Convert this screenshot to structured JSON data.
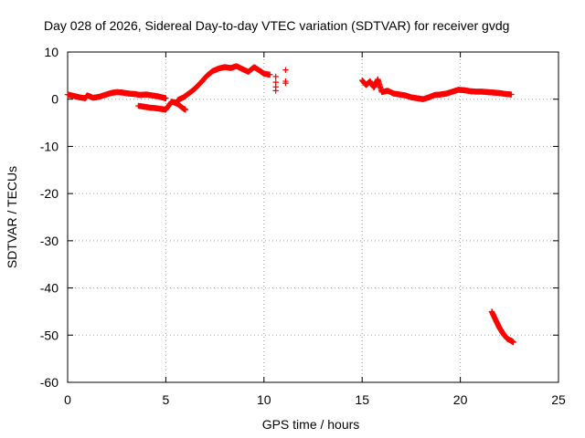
{
  "chart_data": {
    "type": "scatter",
    "title": "Day 028 of 2026, Sidereal Day-to-day VTEC variation (SDTVAR) for receiver gvdg",
    "xlabel": "GPS time / hours",
    "ylabel": "SDTVAR / TECUs",
    "xlim": [
      0,
      25
    ],
    "ylim": [
      -60,
      10
    ],
    "xticks": [
      0,
      5,
      10,
      15,
      20,
      25
    ],
    "yticks": [
      10,
      0,
      -10,
      -20,
      -30,
      -40,
      -50,
      -60
    ],
    "grid": true,
    "marker": "+",
    "color": "#ff0000",
    "series": [
      {
        "name": "main_track_a",
        "x": [
          0.0,
          0.3,
          0.6,
          0.9,
          1.0,
          1.3,
          1.6,
          1.9,
          2.2,
          2.5,
          2.8,
          3.1,
          3.4,
          3.7,
          4.0,
          4.3,
          4.6,
          4.9,
          5.0
        ],
        "y": [
          1.0,
          0.7,
          0.4,
          0.2,
          0.8,
          0.3,
          0.5,
          0.9,
          1.3,
          1.5,
          1.4,
          1.2,
          1.1,
          0.9,
          1.0,
          0.8,
          0.6,
          0.3,
          0.2
        ]
      },
      {
        "name": "lower_branch",
        "x": [
          3.6,
          3.9,
          4.2,
          4.5,
          4.8,
          5.0,
          5.3,
          5.6,
          5.9,
          6.0
        ],
        "y": [
          -1.4,
          -1.6,
          -1.8,
          -1.9,
          -2.1,
          -2.2,
          -0.5,
          -1.0,
          -2.0,
          -2.2
        ]
      },
      {
        "name": "main_track_b",
        "x": [
          5.6,
          5.9,
          6.2,
          6.5,
          6.8,
          7.1,
          7.4,
          7.7,
          8.0,
          8.3,
          8.6,
          8.9,
          9.2,
          9.5,
          9.8,
          10.0,
          10.3
        ],
        "y": [
          -0.2,
          0.4,
          1.3,
          2.3,
          3.6,
          5.0,
          6.0,
          6.5,
          6.8,
          6.6,
          7.0,
          6.4,
          5.8,
          6.8,
          6.0,
          5.4,
          5.2
        ]
      },
      {
        "name": "isolated",
        "x": [
          10.6,
          10.6,
          10.6,
          10.6,
          11.1,
          11.1,
          11.1
        ],
        "y": [
          4.8,
          3.6,
          2.6,
          1.8,
          6.2,
          3.8,
          3.4
        ]
      },
      {
        "name": "main_track_c",
        "x": [
          15.0,
          15.2,
          15.4,
          15.6,
          15.8,
          16.0,
          16.3,
          16.6,
          16.9,
          17.2,
          17.5,
          17.8,
          18.1,
          18.4,
          18.7,
          19.0,
          19.3,
          19.6,
          19.9,
          20.2,
          20.5,
          20.8,
          21.1,
          21.4,
          21.7,
          22.0,
          22.3,
          22.6
        ],
        "y": [
          4.0,
          3.0,
          3.8,
          2.5,
          4.2,
          1.5,
          1.8,
          1.2,
          1.0,
          0.8,
          0.4,
          0.2,
          0.0,
          0.4,
          0.9,
          1.0,
          1.2,
          1.6,
          2.0,
          1.9,
          1.7,
          1.6,
          1.6,
          1.5,
          1.4,
          1.3,
          1.1,
          1.0
        ]
      },
      {
        "name": "low_tail",
        "x": [
          21.6,
          21.8,
          22.0,
          22.2,
          22.4,
          22.6,
          22.7
        ],
        "y": [
          -45.0,
          -46.8,
          -48.5,
          -49.8,
          -50.8,
          -51.2,
          -51.5
        ]
      }
    ]
  }
}
